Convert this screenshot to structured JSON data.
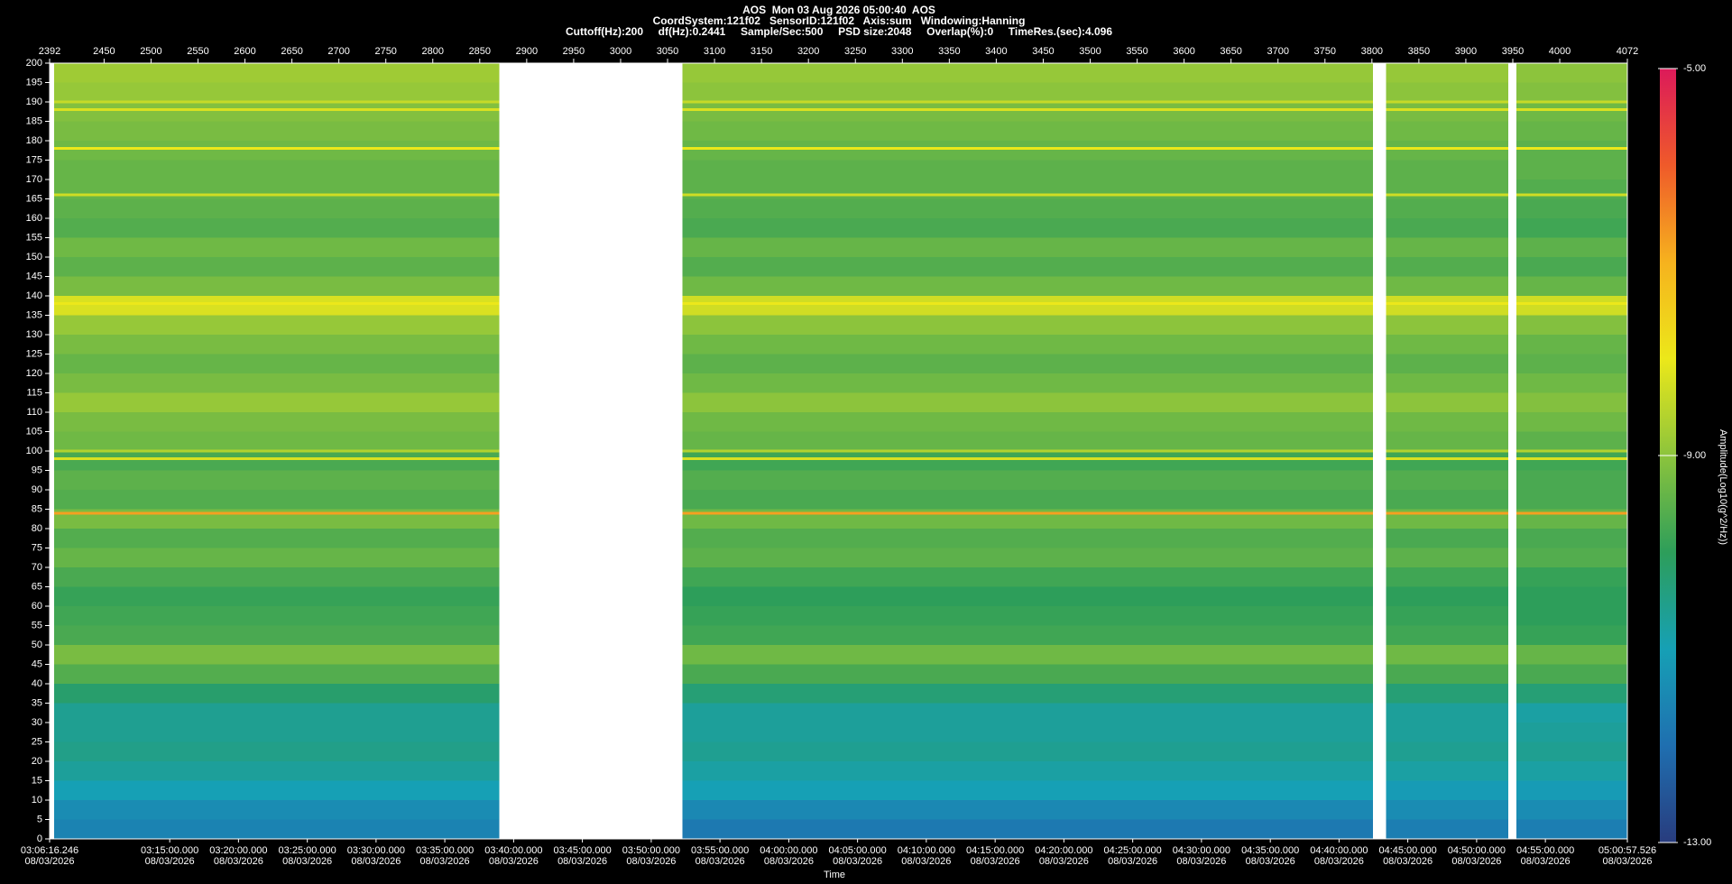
{
  "chart_data": {
    "type": "heatmap",
    "title": "AOS  Mon 03 Aug 2026 05:00:40  AOS",
    "subtitles": [
      "CoordSystem:121f02   SensorID:121f02   Axis:sum   Windowing:Hanning",
      "Cuttoff(Hz):200     df(Hz):0.2441     Sample/Sec:500     PSD size:2048     Overlap(%):0     TimeRes.(sec):4.096"
    ],
    "xlabel": "Time",
    "zlabel": "Amplitude(Log10(g^2/Hz))",
    "xlim": [
      2392,
      4072
    ],
    "xticks": [
      2392,
      2450,
      2500,
      2550,
      2600,
      2650,
      2700,
      2750,
      2800,
      2850,
      2900,
      2950,
      3000,
      3050,
      3100,
      3150,
      3200,
      3250,
      3300,
      3350,
      3400,
      3450,
      3500,
      3550,
      3600,
      3650,
      3700,
      3750,
      3800,
      3850,
      3900,
      3950,
      4000,
      4072
    ],
    "time_ticks": [
      {
        "value": 2392,
        "label": "03:06:16.246 08/03/2026"
      },
      {
        "value": 2519.9,
        "label": "03:15:00.000 08/03/2026"
      },
      {
        "value": 2593.1,
        "label": "03:20:00.000 08/03/2026"
      },
      {
        "value": 2666.4,
        "label": "03:25:00.000 08/03/2026"
      },
      {
        "value": 2739.6,
        "label": "03:30:00.000 08/03/2026"
      },
      {
        "value": 2812.8,
        "label": "03:35:00.000 08/03/2026"
      },
      {
        "value": 2886.1,
        "label": "03:40:00.000 08/03/2026"
      },
      {
        "value": 2959.3,
        "label": "03:45:00.000 08/03/2026"
      },
      {
        "value": 3032.6,
        "label": "03:50:00.000 08/03/2026"
      },
      {
        "value": 3105.8,
        "label": "03:55:00.000 08/03/2026"
      },
      {
        "value": 3179.1,
        "label": "04:00:00.000 08/03/2026"
      },
      {
        "value": 3252.3,
        "label": "04:05:00.000 08/03/2026"
      },
      {
        "value": 3325.5,
        "label": "04:10:00.000 08/03/2026"
      },
      {
        "value": 3398.8,
        "label": "04:15:00.000 08/03/2026"
      },
      {
        "value": 3472.0,
        "label": "04:20:00.000 08/03/2026"
      },
      {
        "value": 3545.3,
        "label": "04:25:00.000 08/03/2026"
      },
      {
        "value": 3618.5,
        "label": "04:30:00.000 08/03/2026"
      },
      {
        "value": 3691.8,
        "label": "04:35:00.000 08/03/2026"
      },
      {
        "value": 3765.0,
        "label": "04:40:00.000 08/03/2026"
      },
      {
        "value": 3838.2,
        "label": "04:45:00.000 08/03/2026"
      },
      {
        "value": 3911.5,
        "label": "04:50:00.000 08/03/2026"
      },
      {
        "value": 3984.7,
        "label": "04:55:00.000 08/03/2026"
      },
      {
        "value": 4072,
        "label": "05:00:57.526 08/03/2026"
      }
    ],
    "ylim": [
      0,
      200
    ],
    "yticks": [
      0,
      5,
      10,
      15,
      20,
      25,
      30,
      35,
      40,
      45,
      50,
      55,
      60,
      65,
      70,
      75,
      80,
      85,
      90,
      95,
      100,
      105,
      110,
      115,
      120,
      125,
      130,
      135,
      140,
      145,
      150,
      155,
      160,
      165,
      170,
      175,
      180,
      185,
      190,
      195,
      200
    ],
    "zlim": [
      -13,
      -5
    ],
    "zticks": [
      {
        "value": -5,
        "label": "-5.00"
      },
      {
        "value": -9,
        "label": "-9.00"
      },
      {
        "value": -13,
        "label": "-13.00"
      }
    ],
    "colors": [
      "#283c7e",
      "#1f6fb0",
      "#16a0b5",
      "#2d9e5a",
      "#8cc43c",
      "#ece81a",
      "#f6b21e",
      "#ef5a2a",
      "#dc1a5a"
    ],
    "segments": [
      [
        2397,
        2871
      ],
      [
        3066,
        3801
      ],
      [
        3815,
        3945
      ],
      [
        3954,
        4072
      ]
    ],
    "z": [
      [
        -11.6,
        -11.8,
        -11.7,
        -11.7
      ],
      [
        -11.4,
        -11.5,
        -11.4,
        -11.4
      ],
      [
        -11.0,
        -11.0,
        -11.1,
        -11.1
      ],
      [
        -10.7,
        -10.8,
        -10.8,
        -10.8
      ],
      [
        -10.5,
        -10.6,
        -10.6,
        -10.6
      ],
      [
        -10.6,
        -10.7,
        -10.7,
        -10.7
      ],
      [
        -10.6,
        -10.7,
        -10.7,
        -10.8
      ],
      [
        -10.2,
        -10.3,
        -10.3,
        -10.3
      ],
      [
        -9.6,
        -9.7,
        -9.7,
        -9.7
      ],
      [
        -9.2,
        -9.3,
        -9.3,
        -9.4
      ],
      [
        -9.7,
        -9.8,
        -9.8,
        -9.9
      ],
      [
        -9.8,
        -9.9,
        -9.9,
        -10.0
      ],
      [
        -9.9,
        -10.0,
        -10.0,
        -10.0
      ],
      [
        -9.7,
        -9.8,
        -9.8,
        -9.9
      ],
      [
        -9.4,
        -9.5,
        -9.5,
        -9.6
      ],
      [
        -9.6,
        -9.6,
        -9.7,
        -9.7
      ],
      [
        -9.2,
        -9.3,
        -9.3,
        -9.4
      ],
      [
        -9.6,
        -9.7,
        -9.7,
        -9.7
      ],
      [
        -9.5,
        -9.6,
        -9.6,
        -9.7
      ],
      [
        -9.7,
        -9.8,
        -9.8,
        -9.8
      ],
      [
        -9.3,
        -9.4,
        -9.4,
        -9.5
      ],
      [
        -9.2,
        -9.3,
        -9.3,
        -9.3
      ],
      [
        -8.9,
        -9.0,
        -9.0,
        -9.1
      ],
      [
        -9.2,
        -9.3,
        -9.3,
        -9.3
      ],
      [
        -9.4,
        -9.5,
        -9.5,
        -9.5
      ],
      [
        -9.2,
        -9.3,
        -9.3,
        -9.4
      ],
      [
        -8.9,
        -9.0,
        -9.0,
        -9.1
      ],
      [
        -8.2,
        -8.3,
        -8.3,
        -8.3
      ],
      [
        -9.2,
        -9.3,
        -9.3,
        -9.4
      ],
      [
        -9.5,
        -9.6,
        -9.6,
        -9.7
      ],
      [
        -9.3,
        -9.4,
        -9.4,
        -9.5
      ],
      [
        -9.6,
        -9.7,
        -9.7,
        -9.8
      ],
      [
        -9.5,
        -9.6,
        -9.6,
        -9.7
      ],
      [
        -9.4,
        -9.5,
        -9.5,
        -9.6
      ],
      [
        -9.4,
        -9.5,
        -9.5,
        -9.5
      ],
      [
        -9.3,
        -9.4,
        -9.4,
        -9.5
      ],
      [
        -9.2,
        -9.3,
        -9.3,
        -9.4
      ],
      [
        -9.1,
        -9.2,
        -9.2,
        -9.3
      ],
      [
        -8.9,
        -9.0,
        -9.0,
        -9.1
      ],
      [
        -8.8,
        -8.9,
        -8.9,
        -9.0
      ]
    ],
    "tones": {
      "freqs": [
        84,
        98,
        100,
        138,
        166,
        178,
        188,
        190
      ],
      "values": [
        -6.8,
        -8.2,
        -8.6,
        -8.0,
        -8.3,
        -8.0,
        -8.2,
        -8.4
      ]
    }
  }
}
